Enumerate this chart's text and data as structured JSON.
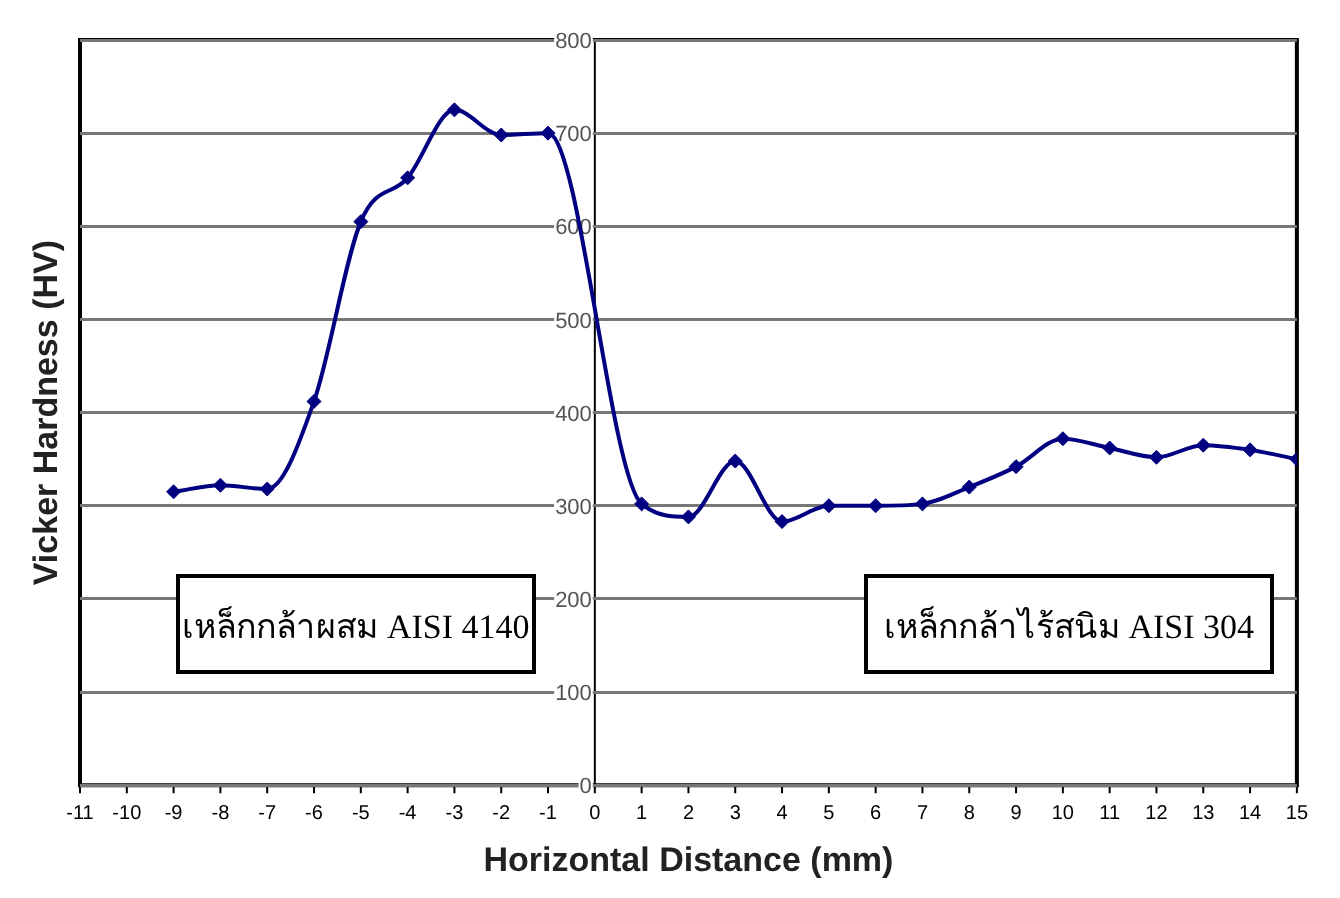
{
  "chart_data": {
    "type": "line",
    "xlabel": "Horizontal Distance (mm)",
    "ylabel": "Vicker Hardness (HV)",
    "x": [
      -9,
      -8,
      -7,
      -6,
      -5,
      -4,
      -3,
      -2,
      -1,
      1,
      2,
      3,
      4,
      5,
      6,
      7,
      8,
      9,
      10,
      11,
      12,
      13,
      14,
      15
    ],
    "series": [
      {
        "color": "#000080",
        "values": [
          315,
          322,
          318,
          412,
          605,
          652,
          725,
          698,
          700,
          302,
          288,
          348,
          283,
          300,
          300,
          302,
          320,
          342,
          372,
          362,
          352,
          365,
          360,
          350
        ]
      }
    ],
    "xlim": [
      -11,
      15
    ],
    "xticks": [
      -11,
      -10,
      -9,
      -8,
      -7,
      -6,
      -5,
      -4,
      -3,
      -2,
      -1,
      0,
      1,
      2,
      3,
      4,
      5,
      6,
      7,
      8,
      9,
      10,
      11,
      12,
      13,
      14,
      15
    ],
    "ylim": [
      0,
      800
    ],
    "yticks": [
      0,
      100,
      200,
      300,
      400,
      500,
      600,
      700,
      800
    ],
    "grid": "y",
    "marker": "diamond",
    "line_style": "solid",
    "legend": false,
    "annotations": [
      "เหล็กกล้าผสม AISI 4140",
      "เหล็กกล้าไร้สนิม AISI 304"
    ]
  }
}
